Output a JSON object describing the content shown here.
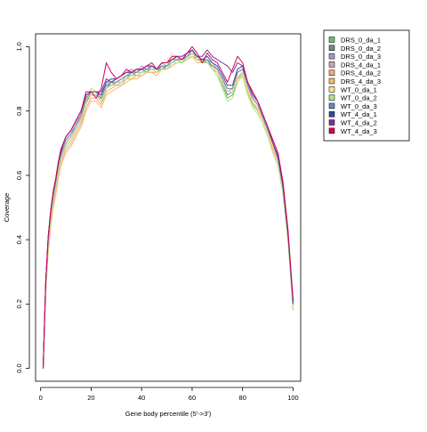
{
  "chart_data": {
    "type": "line",
    "title": "",
    "xlabel": "Gene body percentile (5'->3')",
    "ylabel": "Coverage",
    "xlim": [
      -2,
      103
    ],
    "ylim": [
      -0.04,
      1.04
    ],
    "xticks": [
      0,
      20,
      40,
      60,
      80,
      100
    ],
    "yticks": [
      0.0,
      0.2,
      0.4,
      0.6,
      0.8,
      1.0
    ],
    "grid": false,
    "legend_position": "top-right-outside",
    "x": [
      1,
      2,
      3,
      4,
      5,
      6,
      7,
      8,
      9,
      10,
      12,
      14,
      16,
      18,
      20,
      22,
      24,
      26,
      28,
      30,
      32,
      34,
      36,
      38,
      40,
      42,
      44,
      46,
      48,
      50,
      52,
      54,
      56,
      58,
      60,
      62,
      64,
      66,
      68,
      70,
      72,
      74,
      76,
      78,
      80,
      82,
      84,
      86,
      88,
      90,
      92,
      94,
      96,
      98,
      100
    ],
    "series": [
      {
        "name": "DRS_0_da_1",
        "color": "#66c265",
        "values": [
          0,
          0.25,
          0.38,
          0.46,
          0.52,
          0.56,
          0.61,
          0.65,
          0.67,
          0.69,
          0.71,
          0.74,
          0.77,
          0.82,
          0.86,
          0.86,
          0.83,
          0.87,
          0.89,
          0.88,
          0.89,
          0.9,
          0.92,
          0.91,
          0.92,
          0.93,
          0.93,
          0.92,
          0.94,
          0.93,
          0.95,
          0.96,
          0.95,
          0.97,
          0.99,
          0.96,
          0.95,
          0.96,
          0.93,
          0.92,
          0.88,
          0.84,
          0.85,
          0.9,
          0.92,
          0.86,
          0.82,
          0.8,
          0.77,
          0.73,
          0.68,
          0.64,
          0.55,
          0.4,
          0.18
        ]
      },
      {
        "name": "DRS_0_da_2",
        "color": "#6c8a9a",
        "values": [
          0,
          0.26,
          0.39,
          0.47,
          0.53,
          0.57,
          0.62,
          0.66,
          0.68,
          0.7,
          0.72,
          0.75,
          0.78,
          0.83,
          0.85,
          0.85,
          0.84,
          0.88,
          0.88,
          0.89,
          0.9,
          0.91,
          0.91,
          0.92,
          0.93,
          0.92,
          0.94,
          0.93,
          0.93,
          0.94,
          0.95,
          0.96,
          0.96,
          0.97,
          0.98,
          0.96,
          0.96,
          0.95,
          0.94,
          0.92,
          0.89,
          0.85,
          0.86,
          0.91,
          0.92,
          0.87,
          0.83,
          0.81,
          0.77,
          0.73,
          0.69,
          0.65,
          0.55,
          0.41,
          0.19
        ]
      },
      {
        "name": "DRS_0_da_3",
        "color": "#9e9ac8",
        "values": [
          0,
          0.26,
          0.4,
          0.48,
          0.54,
          0.58,
          0.63,
          0.66,
          0.69,
          0.71,
          0.73,
          0.75,
          0.79,
          0.84,
          0.86,
          0.86,
          0.85,
          0.89,
          0.89,
          0.9,
          0.91,
          0.92,
          0.93,
          0.92,
          0.94,
          0.93,
          0.94,
          0.93,
          0.95,
          0.94,
          0.96,
          0.97,
          0.96,
          0.98,
          0.99,
          0.97,
          0.96,
          0.96,
          0.95,
          0.93,
          0.9,
          0.86,
          0.87,
          0.92,
          0.93,
          0.88,
          0.84,
          0.82,
          0.78,
          0.74,
          0.69,
          0.65,
          0.56,
          0.41,
          0.19
        ]
      },
      {
        "name": "DRS_4_da_1",
        "color": "#c9a9a6",
        "values": [
          0,
          0.25,
          0.39,
          0.47,
          0.53,
          0.57,
          0.62,
          0.65,
          0.68,
          0.7,
          0.72,
          0.75,
          0.78,
          0.82,
          0.85,
          0.85,
          0.83,
          0.87,
          0.88,
          0.89,
          0.89,
          0.91,
          0.91,
          0.92,
          0.92,
          0.93,
          0.93,
          0.93,
          0.94,
          0.94,
          0.95,
          0.96,
          0.96,
          0.97,
          0.98,
          0.96,
          0.95,
          0.95,
          0.94,
          0.92,
          0.89,
          0.86,
          0.86,
          0.91,
          0.92,
          0.87,
          0.83,
          0.81,
          0.77,
          0.73,
          0.69,
          0.64,
          0.55,
          0.4,
          0.19
        ]
      },
      {
        "name": "DRS_4_da_2",
        "color": "#f4a582",
        "values": [
          0,
          0.24,
          0.37,
          0.45,
          0.51,
          0.55,
          0.6,
          0.64,
          0.66,
          0.68,
          0.7,
          0.73,
          0.76,
          0.81,
          0.84,
          0.84,
          0.82,
          0.86,
          0.87,
          0.88,
          0.88,
          0.9,
          0.9,
          0.91,
          0.91,
          0.92,
          0.92,
          0.92,
          0.93,
          0.93,
          0.94,
          0.95,
          0.95,
          0.96,
          0.97,
          0.96,
          0.95,
          0.95,
          0.93,
          0.92,
          0.89,
          0.86,
          0.86,
          0.9,
          0.91,
          0.86,
          0.83,
          0.8,
          0.77,
          0.73,
          0.68,
          0.64,
          0.55,
          0.4,
          0.19
        ]
      },
      {
        "name": "DRS_4_da_3",
        "color": "#fdb863",
        "values": [
          0,
          0.24,
          0.36,
          0.44,
          0.5,
          0.54,
          0.59,
          0.63,
          0.65,
          0.67,
          0.69,
          0.72,
          0.75,
          0.8,
          0.83,
          0.83,
          0.81,
          0.85,
          0.86,
          0.87,
          0.88,
          0.89,
          0.9,
          0.9,
          0.91,
          0.92,
          0.92,
          0.91,
          0.93,
          0.93,
          0.94,
          0.95,
          0.95,
          0.96,
          0.97,
          0.95,
          0.95,
          0.95,
          0.93,
          0.92,
          0.89,
          0.86,
          0.86,
          0.9,
          0.91,
          0.86,
          0.83,
          0.8,
          0.77,
          0.73,
          0.68,
          0.64,
          0.55,
          0.4,
          0.19
        ]
      },
      {
        "name": "WT_0_da_1",
        "color": "#fee090",
        "values": [
          0,
          0.25,
          0.38,
          0.46,
          0.52,
          0.56,
          0.61,
          0.65,
          0.67,
          0.69,
          0.71,
          0.74,
          0.77,
          0.82,
          0.85,
          0.86,
          0.84,
          0.88,
          0.89,
          0.89,
          0.9,
          0.91,
          0.92,
          0.92,
          0.93,
          0.94,
          0.94,
          0.93,
          0.95,
          0.96,
          0.98,
          0.96,
          0.96,
          0.97,
          0.99,
          0.97,
          0.96,
          0.96,
          0.94,
          0.92,
          0.89,
          0.86,
          0.86,
          0.91,
          0.92,
          0.87,
          0.83,
          0.81,
          0.77,
          0.73,
          0.69,
          0.64,
          0.55,
          0.4,
          0.19
        ]
      },
      {
        "name": "WT_0_da_2",
        "color": "#b8e186",
        "values": [
          0,
          0.25,
          0.38,
          0.46,
          0.52,
          0.56,
          0.61,
          0.65,
          0.67,
          0.69,
          0.71,
          0.74,
          0.77,
          0.83,
          0.87,
          0.86,
          0.83,
          0.87,
          0.88,
          0.88,
          0.89,
          0.9,
          0.91,
          0.91,
          0.92,
          0.92,
          0.93,
          0.92,
          0.93,
          0.93,
          0.95,
          0.95,
          0.95,
          0.96,
          0.98,
          0.96,
          0.95,
          0.95,
          0.93,
          0.91,
          0.87,
          0.83,
          0.84,
          0.89,
          0.91,
          0.85,
          0.81,
          0.79,
          0.76,
          0.72,
          0.67,
          0.63,
          0.54,
          0.39,
          0.18
        ]
      },
      {
        "name": "WT_0_da_3",
        "color": "#5e8eb8",
        "values": [
          0,
          0.26,
          0.4,
          0.48,
          0.54,
          0.58,
          0.63,
          0.67,
          0.69,
          0.71,
          0.73,
          0.76,
          0.79,
          0.84,
          0.86,
          0.86,
          0.84,
          0.88,
          0.89,
          0.89,
          0.9,
          0.91,
          0.92,
          0.92,
          0.93,
          0.93,
          0.94,
          0.93,
          0.94,
          0.94,
          0.96,
          0.96,
          0.96,
          0.97,
          0.99,
          0.97,
          0.96,
          0.96,
          0.94,
          0.93,
          0.9,
          0.87,
          0.87,
          0.92,
          0.93,
          0.88,
          0.84,
          0.82,
          0.78,
          0.74,
          0.7,
          0.65,
          0.56,
          0.41,
          0.2
        ]
      },
      {
        "name": "WT_4_da_1",
        "color": "#3b4a9a",
        "values": [
          0,
          0.27,
          0.41,
          0.49,
          0.55,
          0.59,
          0.64,
          0.67,
          0.7,
          0.72,
          0.74,
          0.77,
          0.8,
          0.85,
          0.86,
          0.86,
          0.85,
          0.89,
          0.9,
          0.9,
          0.91,
          0.92,
          0.92,
          0.93,
          0.93,
          0.94,
          0.94,
          0.93,
          0.95,
          0.95,
          0.96,
          0.97,
          0.96,
          0.98,
          0.99,
          0.97,
          0.96,
          0.97,
          0.95,
          0.94,
          0.91,
          0.88,
          0.88,
          0.93,
          0.94,
          0.89,
          0.85,
          0.83,
          0.79,
          0.75,
          0.7,
          0.66,
          0.57,
          0.42,
          0.2
        ]
      },
      {
        "name": "WT_4_da_2",
        "color": "#7b3294",
        "values": [
          0,
          0.27,
          0.41,
          0.49,
          0.55,
          0.59,
          0.64,
          0.68,
          0.7,
          0.72,
          0.74,
          0.77,
          0.8,
          0.85,
          0.86,
          0.86,
          0.86,
          0.9,
          0.89,
          0.9,
          0.91,
          0.92,
          0.92,
          0.93,
          0.93,
          0.94,
          0.94,
          0.93,
          0.95,
          0.95,
          0.96,
          0.97,
          0.97,
          0.98,
          0.99,
          0.97,
          0.97,
          0.99,
          0.97,
          0.96,
          0.95,
          0.94,
          0.92,
          0.95,
          0.94,
          0.89,
          0.85,
          0.83,
          0.79,
          0.75,
          0.7,
          0.66,
          0.57,
          0.42,
          0.21
        ]
      },
      {
        "name": "WT_4_da_3",
        "color": "#d6005c",
        "values": [
          0,
          0.27,
          0.41,
          0.49,
          0.55,
          0.59,
          0.64,
          0.68,
          0.7,
          0.72,
          0.74,
          0.77,
          0.8,
          0.86,
          0.86,
          0.84,
          0.87,
          0.95,
          0.92,
          0.9,
          0.91,
          0.93,
          0.92,
          0.93,
          0.93,
          0.94,
          0.95,
          0.93,
          0.95,
          0.95,
          0.97,
          0.97,
          0.96,
          0.98,
          1.0,
          0.98,
          0.95,
          0.98,
          0.96,
          0.95,
          0.92,
          0.89,
          0.93,
          0.97,
          0.95,
          0.89,
          0.86,
          0.83,
          0.79,
          0.75,
          0.71,
          0.67,
          0.58,
          0.43,
          0.21
        ]
      }
    ]
  }
}
